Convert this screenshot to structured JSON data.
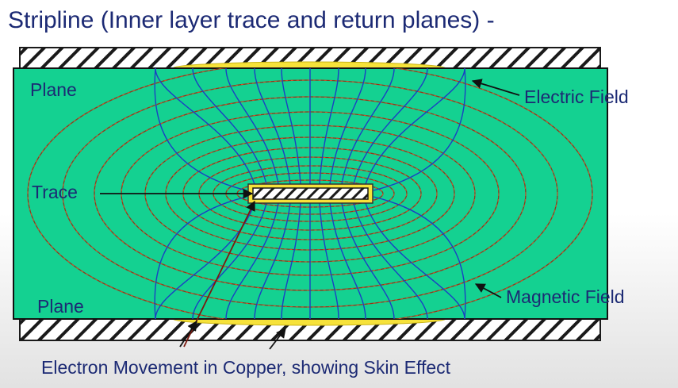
{
  "title": "Stripline (Inner layer trace and return planes) -",
  "labels": {
    "plane_top": "Plane",
    "plane_bottom": "Plane",
    "trace": "Trace",
    "electric_field": "Electric Field",
    "magnetic_field": "Magnetic Field",
    "caption": "Electron Movement in Copper, showing Skin Effect"
  },
  "colors": {
    "dielectric": "#14d191",
    "copper_hatch": "#1a1a1a",
    "current_density": "#f6e23a",
    "electric_field_line": "#1b3fc4",
    "magnetic_field_line": "#8a3c1c",
    "text": "#1c2a74"
  }
}
